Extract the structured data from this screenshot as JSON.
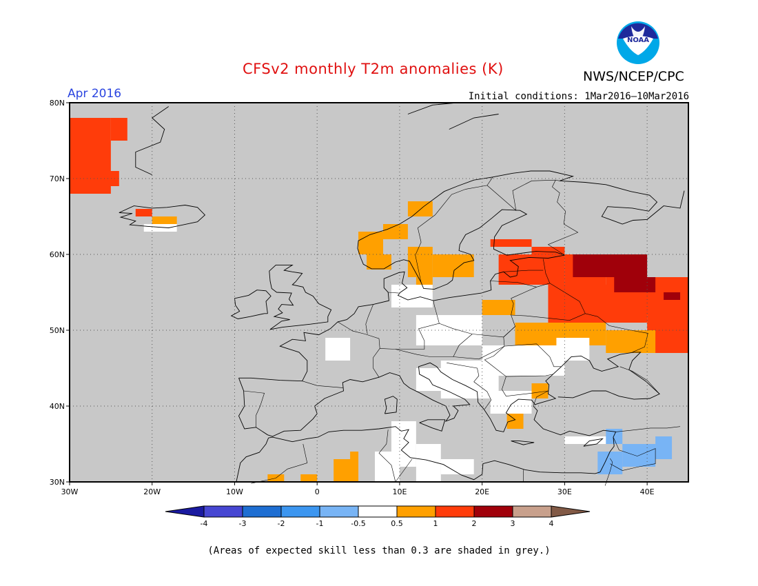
{
  "header": {
    "title": "CFSv2 monthly T2m anomalies (K)",
    "agency": "NWS/NCEP/CPC",
    "logo_text": "NOAA",
    "period": "Apr 2016",
    "initial_conditions": "Initial conditions: 1Mar2016–10Mar2016"
  },
  "map": {
    "lon_range": [
      -30,
      45
    ],
    "lat_range": [
      30,
      80
    ],
    "lat_labels": [
      "30N",
      "40N",
      "50N",
      "60N",
      "70N",
      "80N"
    ],
    "lon_labels": [
      "30W",
      "20W",
      "10W",
      "0",
      "10E",
      "20E",
      "30E",
      "40E"
    ],
    "ocean_color": "#c8c8c8",
    "skill_mask_color": "#c8c8c8"
  },
  "legend": {
    "tick_labels": [
      "-4",
      "-3",
      "-2",
      "-1",
      "-0.5",
      "0.5",
      "1",
      "2",
      "3",
      "4"
    ],
    "bins": [
      {
        "range": "< -4",
        "color": "#1a1aa0"
      },
      {
        "range": "-4 to -3",
        "color": "#4646d2"
      },
      {
        "range": "-3 to -2",
        "color": "#1e6ed2"
      },
      {
        "range": "-2 to -1",
        "color": "#3c96f0"
      },
      {
        "range": "-1 to -0.5",
        "color": "#78b4f5"
      },
      {
        "range": "-0.5 to 0.5",
        "color": "#ffffff"
      },
      {
        "range": "0.5 to 1",
        "color": "#ffa000"
      },
      {
        "range": "1 to 2",
        "color": "#ff3c0a"
      },
      {
        "range": "2 to 3",
        "color": "#a0000a"
      },
      {
        "range": "3 to 4",
        "color": "#c8a08c"
      },
      {
        "range": "> 4",
        "color": "#825a46"
      }
    ]
  },
  "anomaly_regions": [
    {
      "name": "Greenland east coast",
      "category": "1 to 2",
      "lon": [
        -30,
        -25
      ],
      "lat": [
        68,
        78
      ]
    },
    {
      "name": "Iceland",
      "category": "0.5 to 1",
      "lon": [
        -22,
        -17
      ],
      "lat": [
        63,
        66
      ]
    },
    {
      "name": "Norway coast",
      "category": "0.5 to 1",
      "lon": [
        5,
        15
      ],
      "lat": [
        58,
        67
      ]
    },
    {
      "name": "Sweden",
      "category": "0.5 to 1",
      "lon": [
        11,
        19
      ],
      "lat": [
        55,
        61
      ]
    },
    {
      "name": "Western Russia",
      "category": "1 to 2",
      "lon": [
        22,
        45
      ],
      "lat": [
        47,
        61
      ]
    },
    {
      "name": "Central Russia",
      "category": "2 to 3",
      "lon": [
        30,
        41
      ],
      "lat": [
        56,
        60
      ]
    },
    {
      "name": "Ukraine",
      "category": "0.5 to 1",
      "lon": [
        24,
        41
      ],
      "lat": [
        47,
        51
      ]
    },
    {
      "name": "Balkans",
      "category": "-0.5 to 0.5",
      "lon": [
        12,
        30
      ],
      "lat": [
        40,
        48
      ]
    },
    {
      "name": "Levant",
      "category": "-1 to -0.5",
      "lon": [
        35,
        42
      ],
      "lat": [
        31,
        36
      ]
    },
    {
      "name": "Algeria",
      "category": "0.5 to 1",
      "lon": [
        2,
        5
      ],
      "lat": [
        30,
        32
      ]
    }
  ],
  "caption": "(Areas of expected skill less than 0.3 are shaded in grey.)"
}
